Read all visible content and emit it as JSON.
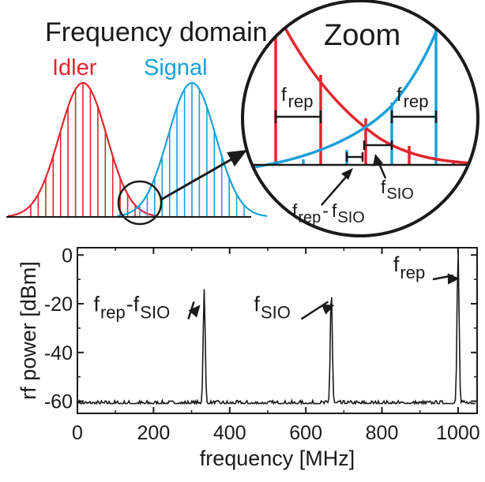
{
  "panel_top": {
    "title": "Frequency domain",
    "idler_label": "Idler",
    "signal_label": "Signal",
    "zoom_label": "Zoom",
    "frep_main": "f",
    "frep_sub": "rep",
    "fsio_main": "f",
    "fsio_sub": "SIO",
    "diff_minus": "-",
    "colors": {
      "idler": "#e0262f",
      "signal": "#1ba0d8",
      "outline": "#1a1a1a"
    },
    "idler_lines": 14,
    "signal_lines": 14
  },
  "chart_data": {
    "type": "line",
    "xlabel": "frequency [MHz]",
    "ylabel": "rf power [dBm]",
    "xlim": [
      0,
      1050
    ],
    "ylim": [
      -65,
      3
    ],
    "xticks": [
      0,
      200,
      400,
      600,
      800,
      1000
    ],
    "yticks": [
      0,
      -20,
      -40,
      -60
    ],
    "noise_floor": -61,
    "peaks": [
      {
        "x": 333,
        "y": -14,
        "label_main": "f",
        "label_sub1": "rep",
        "label_dash": "-f",
        "label_sub2": "SIO"
      },
      {
        "x": 667,
        "y": -14,
        "label_main": "f",
        "label_sub1": "SIO",
        "label_dash": "",
        "label_sub2": ""
      },
      {
        "x": 1000,
        "y": 2,
        "label_main": "f",
        "label_sub1": "rep",
        "label_dash": "",
        "label_sub2": ""
      }
    ]
  }
}
